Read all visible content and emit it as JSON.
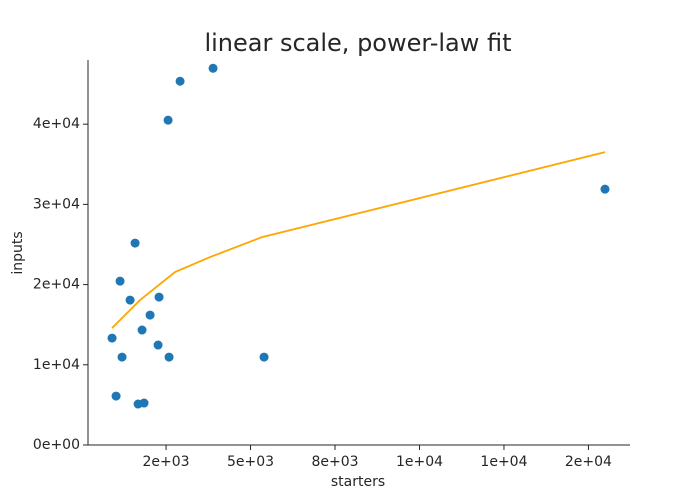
{
  "chart_data": {
    "type": "scatter",
    "title": "linear scale, power-law fit",
    "x_label": "starters",
    "y_label": "inputs",
    "xlim": [
      190,
      16230
    ],
    "ylim": [
      0,
      48000
    ],
    "xticks": [
      {
        "value": 2500,
        "label": "2e+03"
      },
      {
        "value": 5000,
        "label": "5e+03"
      },
      {
        "value": 7500,
        "label": "8e+03"
      },
      {
        "value": 10000,
        "label": "1e+04"
      },
      {
        "value": 12500,
        "label": "1e+04"
      },
      {
        "value": 15000,
        "label": "2e+04"
      }
    ],
    "yticks": [
      {
        "value": 0,
        "label": "0e+00"
      },
      {
        "value": 10000,
        "label": "1e+04"
      },
      {
        "value": 20000,
        "label": "2e+04"
      },
      {
        "value": 30000,
        "label": "3e+04"
      },
      {
        "value": 40000,
        "label": "4e+04"
      }
    ],
    "grid": false,
    "series": [
      {
        "kind": "scatter",
        "color": "#1f77b4",
        "x": [
          902,
          1021,
          1139,
          1198,
          1435,
          1583,
          1672,
          1790,
          1849,
          2027,
          2264,
          2293,
          2560,
          2589,
          2915,
          3891,
          5400,
          15490
        ],
        "values": [
          13330,
          6100,
          20430,
          10960,
          18070,
          25170,
          5110,
          14330,
          5230,
          16200,
          12460,
          18440,
          40500,
          10960,
          45350,
          46970,
          10960,
          31900
        ]
      },
      {
        "kind": "line",
        "color": "#ffa500",
        "x": [
          902,
          1731,
          2767,
          3803,
          5341,
          15490
        ],
        "values": [
          14580,
          18070,
          21560,
          23430,
          25920,
          36510
        ]
      }
    ]
  }
}
